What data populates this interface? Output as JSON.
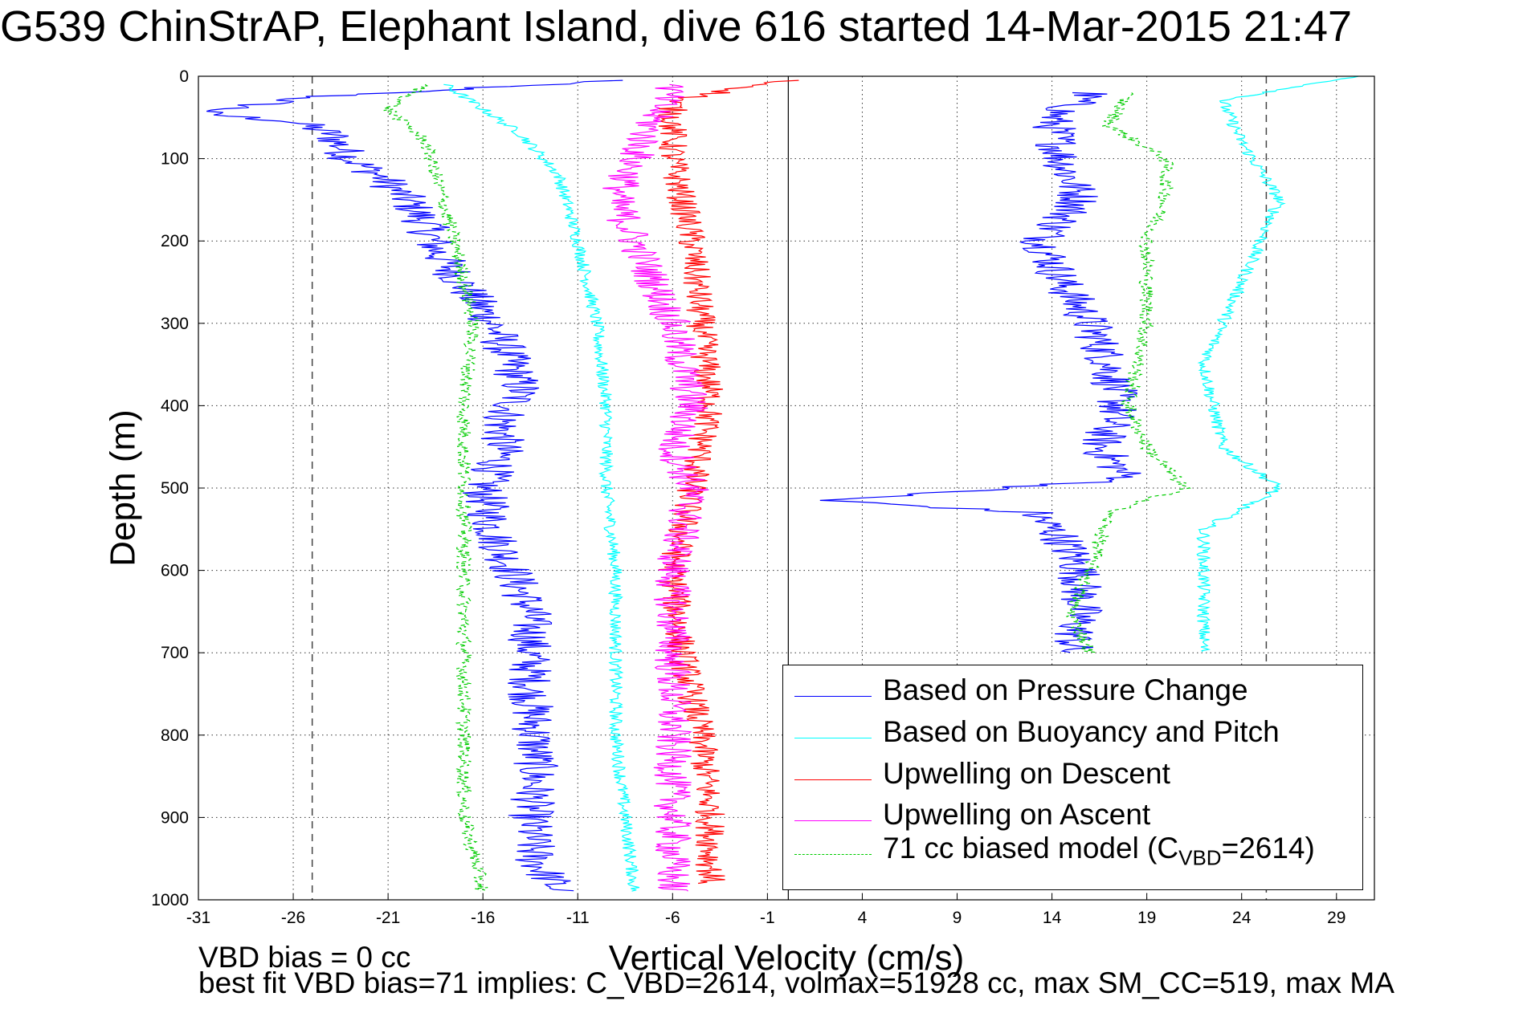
{
  "title": "G539 ChinStrAP, Elephant Island, dive 616 started 14-Mar-2015 21:47",
  "footer": {
    "line1": "VBD bias = 0 cc",
    "line2": "best fit VBD bias=71 implies: C_VBD=2614, volmax=51928 cc, max SM_CC=519, max MA"
  },
  "chart_data": {
    "type": "line",
    "xlabel": "Vertical Velocity (cm/s)",
    "ylabel": "Depth (m)",
    "xlim": [
      -31,
      31
    ],
    "ylim": [
      1000,
      0
    ],
    "y_reversed": true,
    "grid": true,
    "legend_position": "bottom-right",
    "x_ticks": [
      "-31",
      "-26",
      "-21",
      "-16",
      "-11",
      "-6",
      "-1",
      "4",
      "9",
      "14",
      "19",
      "24",
      "29"
    ],
    "y_ticks": [
      "0",
      "100",
      "200",
      "300",
      "400",
      "500",
      "600",
      "700",
      "800",
      "900",
      "1000"
    ],
    "reference_lines": {
      "dashed_x": [
        -25,
        25.3
      ],
      "solid_x": [
        0.1
      ]
    },
    "series": [
      {
        "name": "Based on Pressure Change",
        "color": "#0000ff",
        "style": "solid",
        "descent": [
          [
            -9,
            5
          ],
          [
            -25,
            25
          ],
          [
            -31,
            45
          ],
          [
            -26,
            55
          ],
          [
            -24,
            70
          ],
          [
            -23,
            100
          ],
          [
            -21.5,
            120
          ],
          [
            -20,
            150
          ],
          [
            -19,
            180
          ],
          [
            -18.5,
            210
          ],
          [
            -17.5,
            240
          ],
          [
            -16.5,
            270
          ],
          [
            -15.5,
            300
          ],
          [
            -14.5,
            350
          ],
          [
            -14,
            380
          ],
          [
            -15,
            420
          ],
          [
            -15,
            460
          ],
          [
            -16,
            500
          ],
          [
            -15.5,
            550
          ],
          [
            -14.5,
            600
          ],
          [
            -13.5,
            650
          ],
          [
            -13.5,
            700
          ],
          [
            -13.5,
            750
          ],
          [
            -13.3,
            800
          ],
          [
            -13.2,
            850
          ],
          [
            -13.5,
            900
          ],
          [
            -13.3,
            950
          ],
          [
            -12,
            990
          ]
        ],
        "ascent": [
          [
            16,
            20
          ],
          [
            14,
            50
          ],
          [
            14.5,
            100
          ],
          [
            15.5,
            150
          ],
          [
            13.5,
            200
          ],
          [
            14.5,
            250
          ],
          [
            16,
            300
          ],
          [
            17,
            350
          ],
          [
            17.5,
            400
          ],
          [
            16.5,
            450
          ],
          [
            18,
            490
          ],
          [
            2,
            515
          ],
          [
            13,
            530
          ],
          [
            14.5,
            560
          ],
          [
            15.5,
            600
          ],
          [
            15.5,
            650
          ],
          [
            15,
            700
          ]
        ]
      },
      {
        "name": "Based on Buoyancy and Pitch",
        "color": "#00ffff",
        "style": "solid",
        "descent": [
          [
            -18,
            10
          ],
          [
            -16,
            40
          ],
          [
            -14,
            70
          ],
          [
            -12,
            120
          ],
          [
            -11,
            200
          ],
          [
            -10,
            300
          ],
          [
            -9.5,
            400
          ],
          [
            -9.5,
            500
          ],
          [
            -9,
            600
          ],
          [
            -9,
            700
          ],
          [
            -9,
            800
          ],
          [
            -8.5,
            900
          ],
          [
            -8,
            990
          ]
        ],
        "ascent": [
          [
            30,
            0
          ],
          [
            23,
            30
          ],
          [
            24,
            80
          ],
          [
            26,
            150
          ],
          [
            24,
            250
          ],
          [
            22,
            350
          ],
          [
            23,
            450
          ],
          [
            26,
            500
          ],
          [
            22,
            550
          ],
          [
            22,
            650
          ],
          [
            22,
            700
          ]
        ]
      },
      {
        "name": "Upwelling on Descent",
        "color": "#ff0000",
        "style": "solid",
        "descent": [
          [
            0,
            5
          ],
          [
            -6,
            30
          ],
          [
            -6,
            100
          ],
          [
            -5,
            200
          ],
          [
            -4.5,
            300
          ],
          [
            -4,
            400
          ],
          [
            -5,
            500
          ],
          [
            -6,
            600
          ],
          [
            -5.5,
            700
          ],
          [
            -4.5,
            800
          ],
          [
            -4,
            900
          ],
          [
            -4,
            980
          ]
        ]
      },
      {
        "name": "Upwelling on Ascent",
        "color": "#ff00ff",
        "style": "solid",
        "ascent": [
          [
            -6,
            990
          ],
          [
            -6,
            900
          ],
          [
            -6,
            800
          ],
          [
            -6,
            700
          ],
          [
            -6,
            600
          ],
          [
            -5,
            500
          ],
          [
            -6,
            450
          ],
          [
            -5,
            400
          ],
          [
            -6,
            300
          ],
          [
            -7,
            250
          ],
          [
            -8,
            200
          ],
          [
            -9,
            150
          ],
          [
            -8,
            100
          ],
          [
            -7,
            50
          ],
          [
            -6,
            10
          ]
        ]
      },
      {
        "name": "71 cc biased model (C",
        "name_sub": "VBD",
        "name_tail": "=2614)",
        "color": "#00cc00",
        "style": "dashed",
        "descent": [
          [
            -19,
            10
          ],
          [
            -21,
            40
          ],
          [
            -19,
            80
          ],
          [
            -18.5,
            120
          ],
          [
            -18,
            160
          ],
          [
            -17.5,
            200
          ],
          [
            -17,
            250
          ],
          [
            -16.5,
            300
          ],
          [
            -17,
            400
          ],
          [
            -17,
            500
          ],
          [
            -17,
            600
          ],
          [
            -17,
            700
          ],
          [
            -17,
            800
          ],
          [
            -17,
            900
          ],
          [
            -16,
            990
          ]
        ],
        "ascent": [
          [
            18,
            20
          ],
          [
            17,
            60
          ],
          [
            20,
            100
          ],
          [
            20,
            150
          ],
          [
            19,
            200
          ],
          [
            19,
            250
          ],
          [
            19,
            300
          ],
          [
            18,
            400
          ],
          [
            19,
            450
          ],
          [
            21,
            500
          ],
          [
            17,
            530
          ],
          [
            16,
            600
          ],
          [
            15,
            650
          ],
          [
            16,
            700
          ]
        ]
      }
    ]
  }
}
